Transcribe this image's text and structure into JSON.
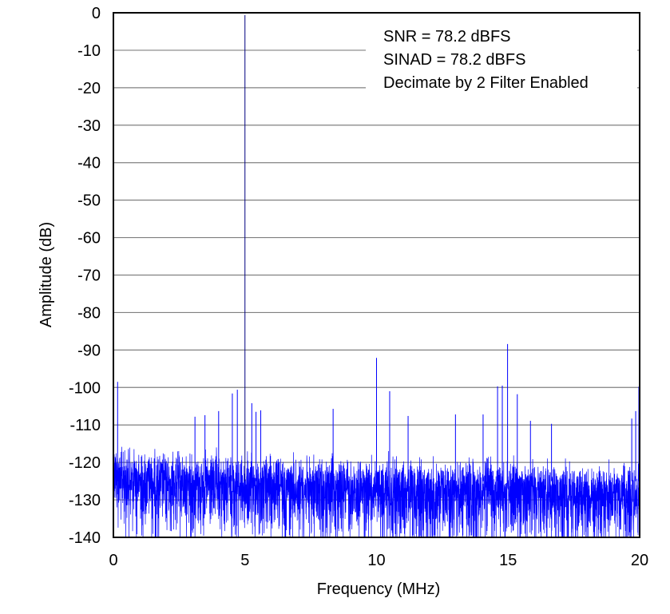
{
  "chart_data": {
    "type": "line",
    "xlabel": "Frequency (MHz)",
    "ylabel": "Amplitude (dB)",
    "xlim": [
      0,
      20
    ],
    "ylim": [
      -140,
      0
    ],
    "xticks": [
      0,
      5,
      10,
      15,
      20
    ],
    "yticks": [
      0,
      -10,
      -20,
      -30,
      -40,
      -50,
      -60,
      -70,
      -80,
      -90,
      -100,
      -110,
      -120,
      -130,
      -140
    ],
    "grid": "horizontal",
    "series_color": "#0000FF",
    "annotations": [
      "SNR =  78.2 dBFS",
      "SINAD =  78.2 dBFS",
      "Decimate by 2 Filter Enabled"
    ],
    "annotation_placement": "top-right",
    "noise_floor": {
      "x": [
        0,
        0.3,
        2,
        5,
        10,
        15,
        20
      ],
      "typical_peak_db": [
        -110,
        -113,
        -114,
        -115,
        -116,
        -116,
        -118
      ],
      "minimum_db": -140
    },
    "spurs": [
      {
        "x": 0.16,
        "y": -98.5
      },
      {
        "x": 3.1,
        "y": -107.8
      },
      {
        "x": 3.48,
        "y": -107.4
      },
      {
        "x": 4.0,
        "y": -106.3
      },
      {
        "x": 4.52,
        "y": -101.6
      },
      {
        "x": 4.71,
        "y": -100.6
      },
      {
        "x": 5.0,
        "y": -0.6
      },
      {
        "x": 5.26,
        "y": -104.2
      },
      {
        "x": 5.42,
        "y": -106.5
      },
      {
        "x": 5.6,
        "y": -106.1
      },
      {
        "x": 8.35,
        "y": -105.7
      },
      {
        "x": 10.0,
        "y": -92.1
      },
      {
        "x": 10.5,
        "y": -101.0
      },
      {
        "x": 11.2,
        "y": -107.6
      },
      {
        "x": 13.0,
        "y": -107.2
      },
      {
        "x": 14.05,
        "y": -107.2
      },
      {
        "x": 14.6,
        "y": -99.7
      },
      {
        "x": 14.78,
        "y": -99.5
      },
      {
        "x": 14.98,
        "y": -88.4
      },
      {
        "x": 15.35,
        "y": -101.8
      },
      {
        "x": 15.85,
        "y": -108.9
      },
      {
        "x": 16.65,
        "y": -109.7
      },
      {
        "x": 19.7,
        "y": -108.3
      },
      {
        "x": 19.85,
        "y": -106.3
      },
      {
        "x": 19.97,
        "y": -99.8
      }
    ]
  }
}
